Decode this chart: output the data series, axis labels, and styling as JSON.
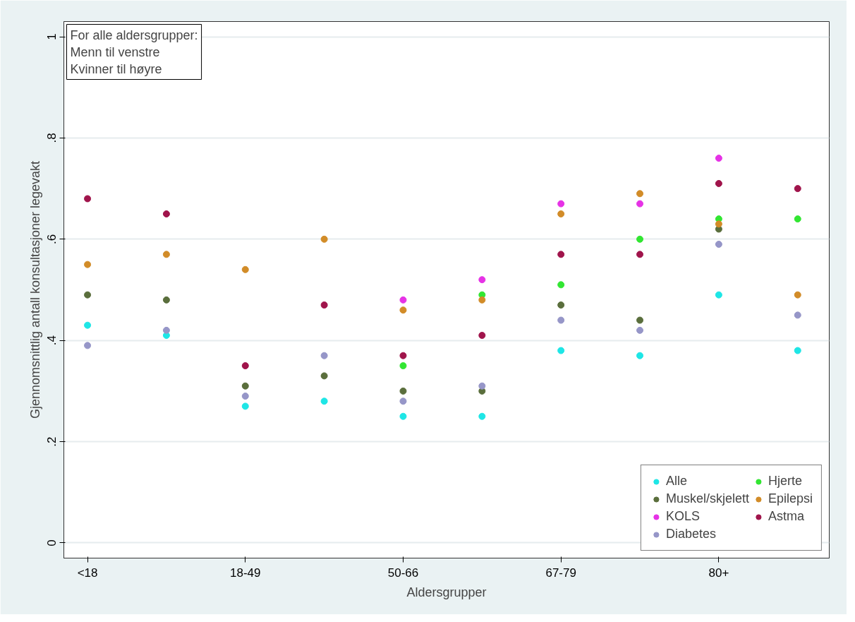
{
  "chart_data": {
    "type": "scatter",
    "xlabel": "Aldersgrupper",
    "ylabel": "Gjennomsnittlig antall konsultasjoner legevakt",
    "annotations": [
      "For alle aldersgrupper:",
      " Menn til venstre",
      " Kvinner til høyre"
    ],
    "categories": [
      "<18",
      null,
      "18-49",
      null,
      "50-66",
      null,
      "67-79",
      null,
      "80+",
      null
    ],
    "ylim": [
      -0.03,
      1.03
    ],
    "yticks": [
      0,
      {
        "value": 0.2,
        "label": ".2"
      },
      {
        "value": 0.4,
        "label": ".4"
      },
      {
        "value": 0.6,
        "label": ".6"
      },
      {
        "value": 0.8,
        "label": ".8"
      },
      1
    ],
    "grid": "y",
    "legend": "bottom right",
    "marker": "circle",
    "series": [
      {
        "name": "Alle",
        "color": "#1ee6e6",
        "values": [
          0.43,
          0.41,
          0.27,
          0.28,
          0.25,
          0.25,
          0.38,
          0.37,
          0.49,
          0.38
        ]
      },
      {
        "name": "Muskel/skjelett",
        "color": "#5a6e3c",
        "values": [
          0.49,
          0.48,
          0.31,
          0.33,
          0.3,
          0.3,
          0.47,
          0.44,
          0.62,
          null
        ]
      },
      {
        "name": "KOLS",
        "color": "#e632e6",
        "values": [
          null,
          null,
          null,
          null,
          0.48,
          0.52,
          0.67,
          0.67,
          0.76,
          null
        ]
      },
      {
        "name": "Diabetes",
        "color": "#9696c8",
        "values": [
          0.39,
          0.42,
          0.29,
          0.37,
          0.28,
          0.31,
          0.44,
          0.42,
          0.59,
          0.45
        ]
      },
      {
        "name": "Hjerte",
        "color": "#32e632",
        "values": [
          null,
          null,
          null,
          null,
          0.35,
          0.49,
          0.51,
          0.6,
          0.64,
          0.64
        ]
      },
      {
        "name": "Epilepsi",
        "color": "#d28c28",
        "values": [
          0.55,
          0.57,
          0.54,
          0.6,
          0.46,
          0.48,
          0.65,
          0.69,
          0.63,
          0.49
        ]
      },
      {
        "name": "Astma",
        "color": "#a0144b",
        "values": [
          0.68,
          0.65,
          0.35,
          0.47,
          0.37,
          0.41,
          0.57,
          0.57,
          0.71,
          0.7
        ]
      }
    ]
  }
}
